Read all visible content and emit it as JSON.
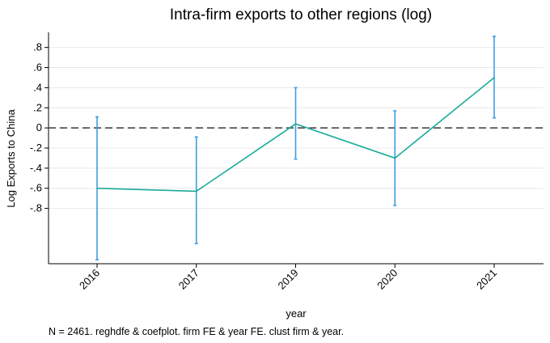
{
  "chart_data": {
    "type": "line",
    "title": "Intra-firm exports to other regions (log)",
    "xlabel": "year",
    "ylabel": "Log Exports to China",
    "note": "N = 2461. reghdfe & coefplot. firm FE & year FE. clust firm & year.",
    "categories": [
      "2016",
      "2017",
      "2019",
      "2020",
      "2021"
    ],
    "series": [
      {
        "values": [
          -0.6,
          -0.63,
          0.04,
          -0.3,
          0.5
        ],
        "ci_low": [
          -1.31,
          -1.15,
          -0.31,
          -0.77,
          0.1
        ],
        "ci_high": [
          0.11,
          -0.09,
          0.4,
          0.17,
          0.91
        ]
      }
    ],
    "yticks": [
      -0.8,
      -0.6,
      -0.4,
      -0.2,
      0,
      0.2,
      0.4,
      0.6,
      0.8
    ],
    "ytick_labels": [
      "-.8",
      "-.6",
      "-.4",
      "-.2",
      "0",
      ".2",
      ".4",
      ".6",
      ".8"
    ],
    "reference_line": 0,
    "ylim": [
      -1.35,
      0.95
    ],
    "grid": true,
    "colors": {
      "line": "#1aab9b",
      "ci": "#3d9ee0",
      "reference": "#555555",
      "grid": "#e8e8e8"
    }
  }
}
